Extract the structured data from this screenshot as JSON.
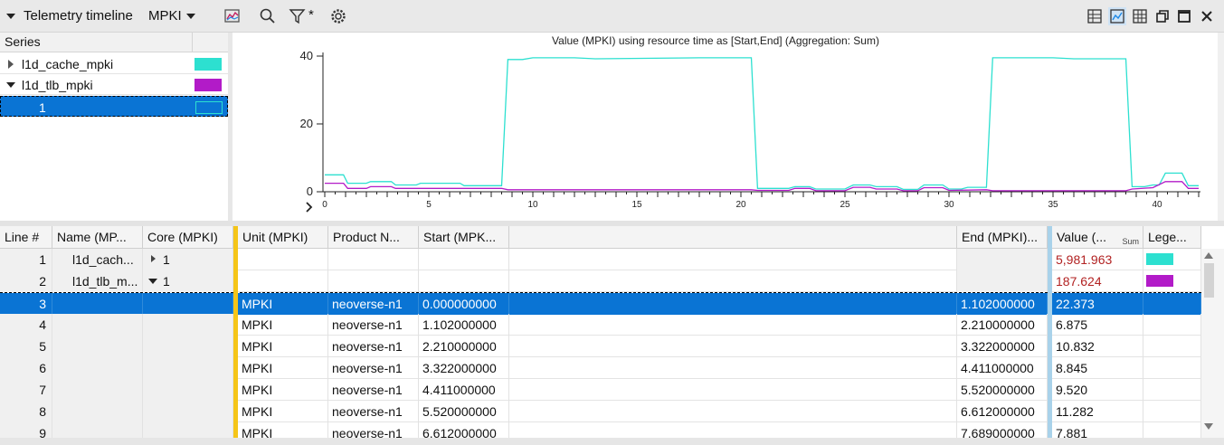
{
  "toolbar": {
    "title": "Telemetry timeline",
    "view_selector": "MPKI",
    "icons": [
      "chart-settings-icon",
      "search-icon",
      "filter-icon",
      "gear-icon"
    ],
    "filter_badge": "*",
    "right_icons": [
      "table-chart-icon",
      "line-chart-icon",
      "grid-icon",
      "restore-icon",
      "maximize-icon",
      "close-icon"
    ]
  },
  "series_panel": {
    "header": "Series",
    "items": [
      {
        "label": "l1d_cache_mpki",
        "color": "#2de0d0",
        "expanded": false
      },
      {
        "label": "l1d_tlb_mpki",
        "color": "#b21bc8",
        "expanded": true
      },
      {
        "label": "1",
        "color": "#2de0d0",
        "selected": true
      }
    ]
  },
  "chart_data": {
    "type": "line",
    "title": "Value (MPKI) using resource time as [Start,End] (Aggregation: Sum)",
    "xlabel": "",
    "ylabel": "",
    "xlim": [
      0,
      42
    ],
    "ylim": [
      0,
      40
    ],
    "x_ticks": [
      0,
      5,
      10,
      15,
      20,
      25,
      30,
      35,
      40
    ],
    "y_ticks": [
      0,
      20,
      40
    ],
    "grid": false,
    "legend": "none",
    "series": [
      {
        "color": "#2de0d0",
        "points": [
          [
            0,
            5
          ],
          [
            0.9,
            5
          ],
          [
            1.1,
            2.5
          ],
          [
            2,
            2.5
          ],
          [
            2.2,
            3
          ],
          [
            3.2,
            3
          ],
          [
            3.4,
            2
          ],
          [
            4.4,
            2
          ],
          [
            4.6,
            2.5
          ],
          [
            6.5,
            2.5
          ],
          [
            6.7,
            1.8
          ],
          [
            8.5,
            1.8
          ],
          [
            8.8,
            39
          ],
          [
            9.5,
            39
          ],
          [
            10,
            39.5
          ],
          [
            12,
            39.5
          ],
          [
            13,
            39.2
          ],
          [
            18,
            39.5
          ],
          [
            20.5,
            39.5
          ],
          [
            20.8,
            1
          ],
          [
            22.3,
            1
          ],
          [
            22.6,
            1.5
          ],
          [
            23.3,
            1.5
          ],
          [
            23.6,
            0.8
          ],
          [
            25,
            0.8
          ],
          [
            25.4,
            2
          ],
          [
            26.2,
            2
          ],
          [
            26.5,
            1.5
          ],
          [
            27.5,
            1.5
          ],
          [
            27.8,
            0.7
          ],
          [
            28.5,
            0.7
          ],
          [
            28.8,
            2
          ],
          [
            29.7,
            2
          ],
          [
            30,
            0.8
          ],
          [
            30.6,
            0.8
          ],
          [
            30.9,
            1.3
          ],
          [
            31.8,
            1.3
          ],
          [
            32.1,
            39.5
          ],
          [
            35,
            39.5
          ],
          [
            36,
            39.2
          ],
          [
            38.5,
            39.2
          ],
          [
            38.8,
            1.5
          ],
          [
            39.4,
            1.5
          ],
          [
            39.8,
            2
          ],
          [
            40.1,
            2
          ],
          [
            40.4,
            5.5
          ],
          [
            41.2,
            5.5
          ],
          [
            41.5,
            1.8
          ],
          [
            42,
            1.8
          ]
        ]
      },
      {
        "color": "#b21bc8",
        "points": [
          [
            0,
            2.5
          ],
          [
            0.9,
            2.5
          ],
          [
            1.1,
            1
          ],
          [
            2,
            1
          ],
          [
            2.2,
            1.5
          ],
          [
            3.2,
            1.5
          ],
          [
            3.4,
            1
          ],
          [
            8.5,
            1
          ],
          [
            8.8,
            0.6
          ],
          [
            20.5,
            0.6
          ],
          [
            20.8,
            0.4
          ],
          [
            22.3,
            0.4
          ],
          [
            22.6,
            1
          ],
          [
            23.3,
            1
          ],
          [
            23.6,
            0.3
          ],
          [
            25,
            0.3
          ],
          [
            25.4,
            1.3
          ],
          [
            26.2,
            1.3
          ],
          [
            26.5,
            0.8
          ],
          [
            27.5,
            0.8
          ],
          [
            27.8,
            0.3
          ],
          [
            28.5,
            0.3
          ],
          [
            28.8,
            1.2
          ],
          [
            29.7,
            1.2
          ],
          [
            30,
            0.4
          ],
          [
            31.8,
            0.6
          ],
          [
            32.1,
            0.3
          ],
          [
            38.5,
            0.3
          ],
          [
            38.8,
            0.8
          ],
          [
            39.8,
            1.2
          ],
          [
            40.4,
            3
          ],
          [
            41.2,
            3
          ],
          [
            41.5,
            1
          ],
          [
            42,
            1
          ]
        ]
      }
    ]
  },
  "grid": {
    "columns": [
      {
        "label": "Line #"
      },
      {
        "label": "Name (MP..."
      },
      {
        "label": "Core (MPKI)"
      },
      {
        "label": "Unit (MPKI)"
      },
      {
        "label": "Product N..."
      },
      {
        "label": "Start (MPK..."
      },
      {
        "label": ""
      },
      {
        "label": "End (MPKI)..."
      },
      {
        "label": "Value (...",
        "sub": "Sum"
      },
      {
        "label": "Lege..."
      }
    ],
    "rows": [
      {
        "line": "1",
        "name": "l1d_cach...",
        "core": "1",
        "core_expand": "collapsed",
        "unit": "",
        "product": "",
        "start": "",
        "end": "",
        "value": "5,981.963",
        "legend": "#2de0d0",
        "group": true
      },
      {
        "line": "2",
        "name": "l1d_tlb_m...",
        "core": "1",
        "core_expand": "expanded",
        "unit": "",
        "product": "",
        "start": "",
        "end": "",
        "value": "187.624",
        "legend": "#b21bc8",
        "group": true
      },
      {
        "line": "3",
        "name": "",
        "core": "",
        "unit": "MPKI",
        "product": "neoverse-n1",
        "start": "0.000000000",
        "end": "1.102000000",
        "value": "22.373",
        "selected": true
      },
      {
        "line": "4",
        "name": "",
        "core": "",
        "unit": "MPKI",
        "product": "neoverse-n1",
        "start": "1.102000000",
        "end": "2.210000000",
        "value": "6.875"
      },
      {
        "line": "5",
        "name": "",
        "core": "",
        "unit": "MPKI",
        "product": "neoverse-n1",
        "start": "2.210000000",
        "end": "3.322000000",
        "value": "10.832"
      },
      {
        "line": "6",
        "name": "",
        "core": "",
        "unit": "MPKI",
        "product": "neoverse-n1",
        "start": "3.322000000",
        "end": "4.411000000",
        "value": "8.845"
      },
      {
        "line": "7",
        "name": "",
        "core": "",
        "unit": "MPKI",
        "product": "neoverse-n1",
        "start": "4.411000000",
        "end": "5.520000000",
        "value": "9.520"
      },
      {
        "line": "8",
        "name": "",
        "core": "",
        "unit": "MPKI",
        "product": "neoverse-n1",
        "start": "5.520000000",
        "end": "6.612000000",
        "value": "11.282"
      },
      {
        "line": "9",
        "name": "",
        "core": "",
        "unit": "MPKI",
        "product": "neoverse-n1",
        "start": "6.612000000",
        "end": "7.689000000",
        "value": "7.881"
      }
    ]
  }
}
